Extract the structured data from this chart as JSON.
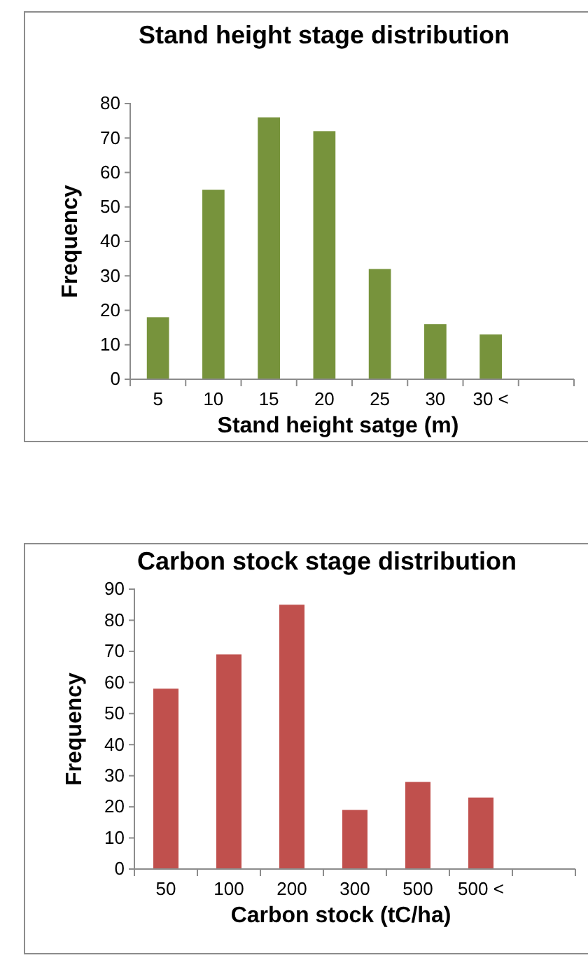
{
  "chart_data": [
    {
      "type": "bar",
      "title": "Stand height stage distribution",
      "xlabel": "Stand height satge (m)",
      "ylabel": "Frequency",
      "categories": [
        "5",
        "10",
        "15",
        "20",
        "25",
        "30",
        "30 <",
        null
      ],
      "series": [
        {
          "color": "#77933c",
          "values": [
            18,
            55,
            76,
            72,
            32,
            16,
            13,
            null
          ]
        }
      ],
      "ylim": [
        0,
        80
      ],
      "yticks": [
        0,
        10,
        20,
        30,
        40,
        50,
        60,
        70,
        80
      ],
      "grid": false
    },
    {
      "type": "bar",
      "title": "Carbon stock stage distribution",
      "xlabel": "Carbon stock (tC/ha)",
      "ylabel": "Frequency",
      "categories": [
        "50",
        "100",
        "200",
        "300",
        "500",
        "500 <",
        null
      ],
      "series": [
        {
          "color": "#c0504d",
          "values": [
            58,
            69,
            85,
            19,
            28,
            23,
            null
          ]
        }
      ],
      "ylim": [
        0,
        90
      ],
      "yticks": [
        0,
        10,
        20,
        30,
        40,
        50,
        60,
        70,
        80,
        90
      ],
      "grid": false
    }
  ]
}
